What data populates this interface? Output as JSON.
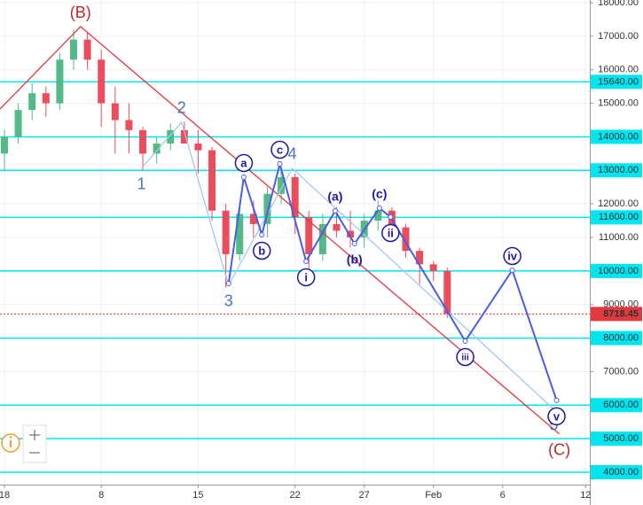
{
  "chart_data": {
    "type": "candlestick",
    "xlim": [
      0.68,
      43.3
    ],
    "ylim": [
      3630,
      18080
    ],
    "grid": true,
    "xticks": [
      {
        "value": 1,
        "label": "18"
      },
      8,
      15,
      22,
      27,
      {
        "value": 32,
        "label": "Feb"
      },
      {
        "value": 37,
        "label": "6"
      },
      {
        "value": 43,
        "label": "12"
      }
    ],
    "yticks": [
      {
        "value": 18000,
        "label": "18000.00"
      },
      {
        "value": 17000,
        "label": "17000.00"
      },
      {
        "value": 16000,
        "label": "16000.00"
      },
      {
        "value": 15000,
        "label": "15000.00"
      },
      {
        "value": 12000,
        "label": "12000.00"
      },
      {
        "value": 11000,
        "label": "11000.00"
      },
      {
        "value": 9000,
        "label": "9000.00"
      },
      {
        "value": 7000,
        "label": "7000.00"
      }
    ],
    "candles": {
      "up_color": "#53b987",
      "down_color": "#eb4d5c",
      "x": [
        1,
        2,
        3,
        4,
        5,
        6,
        7,
        8,
        9,
        10,
        11,
        12,
        13,
        14,
        15,
        16,
        17,
        18,
        19,
        20,
        21,
        22,
        23,
        24,
        25,
        26,
        27,
        28,
        29,
        30,
        31,
        32,
        33
      ],
      "open": [
        13500,
        14000,
        14800,
        15300,
        15000,
        16300,
        16900,
        16300,
        15000,
        14500,
        14200,
        13500,
        13800,
        14200,
        13800,
        13600,
        11800,
        10500,
        11700,
        11400,
        12300,
        12800,
        11600,
        10500,
        11400,
        11200,
        11000,
        11500,
        11800,
        11300,
        10600,
        10200,
        10000
      ],
      "high": [
        14200,
        15000,
        15600,
        15500,
        16500,
        17200,
        17100,
        16600,
        15500,
        15000,
        14300,
        14000,
        14400,
        14450,
        14200,
        13700,
        12000,
        12000,
        12100,
        12500,
        13100,
        12900,
        11800,
        11700,
        11900,
        11800,
        11700,
        12100,
        11900,
        11400,
        10700,
        10300,
        10100
      ],
      "low": [
        13000,
        13800,
        14500,
        14600,
        14800,
        16000,
        16000,
        14300,
        13500,
        13500,
        13000,
        13200,
        13600,
        13800,
        12900,
        11500,
        9500,
        10300,
        11000,
        11000,
        12000,
        11100,
        9900,
        10300,
        11000,
        10700,
        10700,
        11200,
        11200,
        10400,
        9600,
        9700,
        8600
      ],
      "close": [
        14000,
        14800,
        15300,
        15000,
        16300,
        16900,
        16300,
        15000,
        14500,
        14200,
        13500,
        13800,
        14200,
        13800,
        13600,
        11800,
        10500,
        11700,
        11400,
        12300,
        12800,
        11600,
        10500,
        11400,
        11200,
        11000,
        11500,
        11800,
        11300,
        10600,
        10200,
        10000,
        8718.45
      ]
    },
    "levels": {
      "color": "#00e5f0",
      "values": [
        15640,
        14000,
        13000,
        11600,
        10000,
        8000,
        6000,
        5000,
        4000
      ],
      "value_labels": [
        "15640.00",
        "14000.00",
        "13000.00",
        "11600.00",
        "10000.00",
        "8000.00",
        "6000.00",
        "5000.00",
        "4000.00"
      ]
    },
    "last_price": 8718.45,
    "last_price_color": "#e0393e",
    "waves": [
      {
        "color": "#e0393e",
        "label_color": "#c0262d",
        "x": [
          0.68,
          6.5,
          41.1
        ],
        "values": [
          14830,
          17287,
          5138
        ],
        "labels": [
          null,
          "(B)",
          "(C)"
        ]
      },
      {
        "color": "#a7c7f0",
        "label_color": "#4a78b5",
        "x": [
          10.9,
          13.8,
          17.2,
          21.8,
          40.7
        ],
        "values": [
          13061,
          14435,
          9575,
          13061,
          5878
        ],
        "labels": [
          "1",
          "2",
          "3",
          "4",
          "5"
        ]
      },
      {
        "color": "#4a5ce6",
        "label_color": "#1a1aa0",
        "x": [
          17.2,
          18.3,
          19.6,
          20.9,
          22.8,
          24.9,
          26.3,
          28.1,
          28.9,
          34.3,
          37.7,
          40.9
        ],
        "values": [
          9628,
          12797,
          11080,
          13193,
          10288,
          11794,
          10816,
          11873,
          11608,
          7911,
          10024,
          6142
        ],
        "labels": [
          null,
          "a",
          "b",
          "c",
          "i",
          "(a)",
          "(b)",
          "(c)",
          "ii",
          "iii",
          "iv",
          "v"
        ]
      }
    ]
  }
}
